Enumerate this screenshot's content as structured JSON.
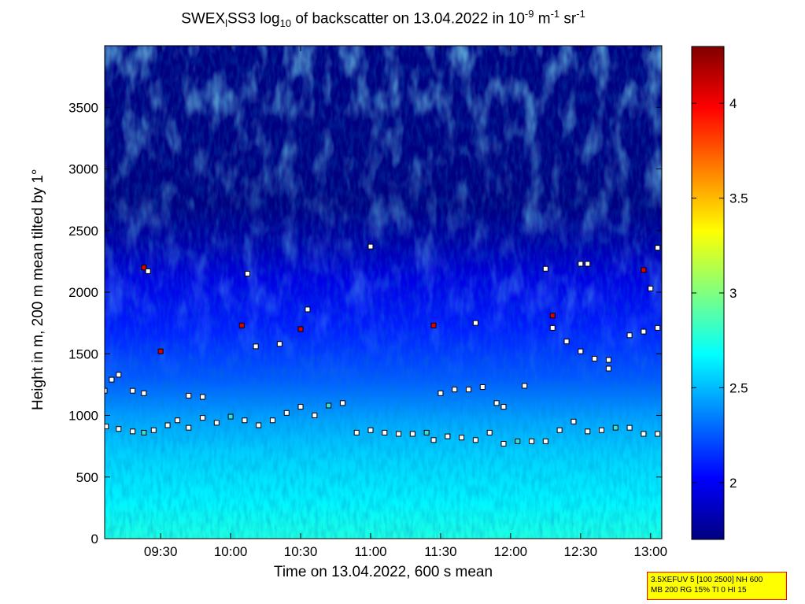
{
  "title": {
    "part1": "SWEX",
    "sub1": "l",
    "part2": "SS3 log",
    "sub2": "10",
    "part3": " of backscatter on 13.04.2022 in 10",
    "sup1": "-9",
    "part4": " m",
    "sup2": "-1",
    "part5": " sr",
    "sup3": "-1"
  },
  "info_box": {
    "line1": "3.5XEFUV 5 [100 2500] NH 600",
    "line2": "MB 200 RG 15% TI 0 HI 15"
  },
  "chart_data": {
    "type": "heatmap",
    "xlabel": "Time on 13.04.2022, 600 s mean",
    "ylabel": "Height in m, 200 m mean tilted by 1°",
    "x_ticks": [
      "09:30",
      "10:00",
      "10:30",
      "11:00",
      "11:30",
      "12:00",
      "12:30",
      "13:00"
    ],
    "x_tick_hours": [
      9.5,
      10.0,
      10.5,
      11.0,
      11.5,
      12.0,
      12.5,
      13.0
    ],
    "xlim_hours": [
      9.1,
      13.08
    ],
    "y_ticks": [
      0,
      500,
      1000,
      1500,
      2000,
      2500,
      3000,
      3500
    ],
    "ylim": [
      0,
      4000
    ],
    "colorbar": {
      "ticks": [
        2,
        2.5,
        3,
        3.5,
        4
      ],
      "range": [
        1.7,
        4.3
      ],
      "colormap": "jet"
    },
    "field_profile": [
      {
        "height": 0,
        "value": 2.75
      },
      {
        "height": 300,
        "value": 2.65
      },
      {
        "height": 700,
        "value": 2.55
      },
      {
        "height": 950,
        "value": 2.45
      },
      {
        "height": 1300,
        "value": 2.25
      },
      {
        "height": 1700,
        "value": 2.1
      },
      {
        "height": 2100,
        "value": 1.95
      },
      {
        "height": 2400,
        "value": 1.8
      },
      {
        "height": 2700,
        "value": 1.7
      },
      {
        "height": 4000,
        "value": 1.7
      }
    ],
    "series": [
      {
        "values": [
          [
            9.11,
            910
          ],
          [
            9.2,
            890
          ],
          [
            9.3,
            870
          ],
          [
            9.38,
            860
          ],
          [
            9.45,
            880
          ],
          [
            9.55,
            920
          ],
          [
            9.62,
            960
          ],
          [
            9.7,
            900
          ],
          [
            9.8,
            980
          ],
          [
            9.9,
            940
          ],
          [
            10.0,
            990
          ],
          [
            10.1,
            960
          ],
          [
            10.2,
            920
          ],
          [
            10.3,
            960
          ],
          [
            10.4,
            1020
          ],
          [
            10.5,
            1070
          ],
          [
            10.6,
            1000
          ],
          [
            10.7,
            1080
          ],
          [
            10.8,
            1100
          ],
          [
            10.9,
            860
          ],
          [
            11.0,
            880
          ],
          [
            11.1,
            860
          ],
          [
            11.2,
            850
          ],
          [
            11.3,
            850
          ],
          [
            11.4,
            860
          ],
          [
            11.45,
            800
          ],
          [
            11.55,
            830
          ],
          [
            11.65,
            820
          ],
          [
            11.75,
            800
          ],
          [
            11.85,
            860
          ],
          [
            11.95,
            770
          ],
          [
            12.05,
            790
          ],
          [
            12.15,
            790
          ],
          [
            12.25,
            790
          ],
          [
            12.35,
            880
          ],
          [
            12.45,
            950
          ],
          [
            12.55,
            870
          ],
          [
            12.65,
            880
          ],
          [
            12.75,
            900
          ],
          [
            12.85,
            900
          ],
          [
            12.95,
            850
          ],
          [
            13.05,
            850
          ]
        ]
      },
      {
        "values": [
          [
            9.1,
            1200
          ],
          [
            9.15,
            1290
          ],
          [
            9.2,
            1330
          ],
          [
            9.3,
            1200
          ],
          [
            9.38,
            1180
          ],
          [
            9.7,
            1160
          ],
          [
            9.8,
            1150
          ],
          [
            11.5,
            1180
          ],
          [
            11.6,
            1210
          ],
          [
            11.7,
            1210
          ],
          [
            11.8,
            1230
          ],
          [
            11.9,
            1100
          ],
          [
            11.95,
            1070
          ],
          [
            12.1,
            1240
          ],
          [
            12.3,
            1710
          ],
          [
            12.4,
            1600
          ],
          [
            12.5,
            1520
          ],
          [
            12.6,
            1460
          ],
          [
            12.7,
            1450
          ],
          [
            12.85,
            1650
          ],
          [
            12.95,
            1680
          ],
          [
            13.05,
            1710
          ]
        ]
      },
      {
        "values": [
          [
            9.38,
            2200
          ],
          [
            9.41,
            2170
          ],
          [
            10.12,
            2150
          ],
          [
            10.08,
            1730
          ],
          [
            10.18,
            1560
          ],
          [
            10.35,
            1580
          ],
          [
            10.5,
            1700
          ],
          [
            10.55,
            1860
          ],
          [
            11.0,
            2370
          ],
          [
            11.45,
            1730
          ],
          [
            11.75,
            1750
          ],
          [
            12.25,
            2190
          ],
          [
            12.3,
            1810
          ],
          [
            12.5,
            2230
          ],
          [
            12.55,
            2230
          ],
          [
            12.95,
            2180
          ],
          [
            13.0,
            2030
          ],
          [
            13.05,
            2360
          ],
          [
            9.5,
            1520
          ],
          [
            12.7,
            1380
          ]
        ]
      }
    ]
  },
  "colors": {
    "marker_fill_default": "#ffffff",
    "marker_fill_red": "#dd0000",
    "marker_fill_cyan": "#40e0d0",
    "marker_stroke": "#000000"
  }
}
